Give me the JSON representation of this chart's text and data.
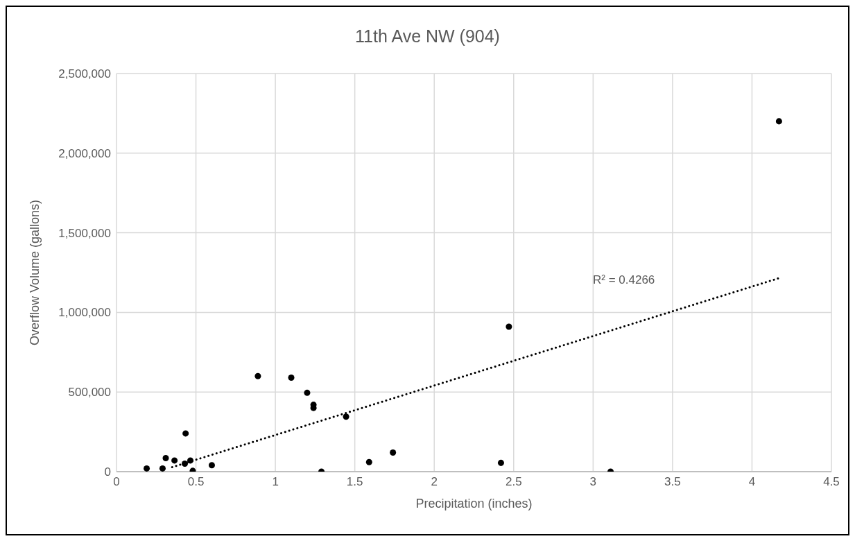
{
  "chart_data": {
    "type": "scatter",
    "title": "11th Ave NW (904)",
    "xlabel": "Precipitation (inches)",
    "ylabel": "Overflow Volume (gallons)",
    "xlim": [
      0,
      4.5
    ],
    "xticks": [
      0,
      0.5,
      1,
      1.5,
      2,
      2.5,
      3,
      3.5,
      4,
      4.5
    ],
    "ylim": [
      0,
      2500000
    ],
    "yticks": [
      0,
      {
        "value": 500000,
        "label": "500,000"
      },
      {
        "value": 1000000,
        "label": "1,000,000"
      },
      {
        "value": 1500000,
        "label": "1,500,000"
      },
      {
        "value": 2000000,
        "label": "2,000,000"
      },
      {
        "value": 2500000,
        "label": "2,500,000"
      }
    ],
    "grid": true,
    "series": [
      {
        "marker": "circle",
        "color": "#000000",
        "x": [
          0.19,
          0.29,
          0.31,
          0.365,
          0.435,
          0.43,
          0.465,
          0.48,
          0.6,
          0.89,
          1.1,
          1.2,
          1.24,
          1.24,
          1.445,
          1.29,
          1.59,
          1.74,
          2.47,
          2.42,
          3.11,
          4.17
        ],
        "values": [
          20000,
          20000,
          85000,
          70000,
          240000,
          50000,
          70000,
          5000,
          40000,
          600000,
          590000,
          495000,
          420000,
          400000,
          345000,
          0,
          60000,
          120000,
          910000,
          55000,
          0,
          2200000
        ]
      },
      {
        "type": "line",
        "marker": "none",
        "color": "#000000",
        "line_style": "dotted",
        "x": [
          0.35,
          4.17
        ],
        "values": [
          28000,
          1215000
        ]
      }
    ],
    "annotations": [
      "R² = 0.4266"
    ]
  }
}
